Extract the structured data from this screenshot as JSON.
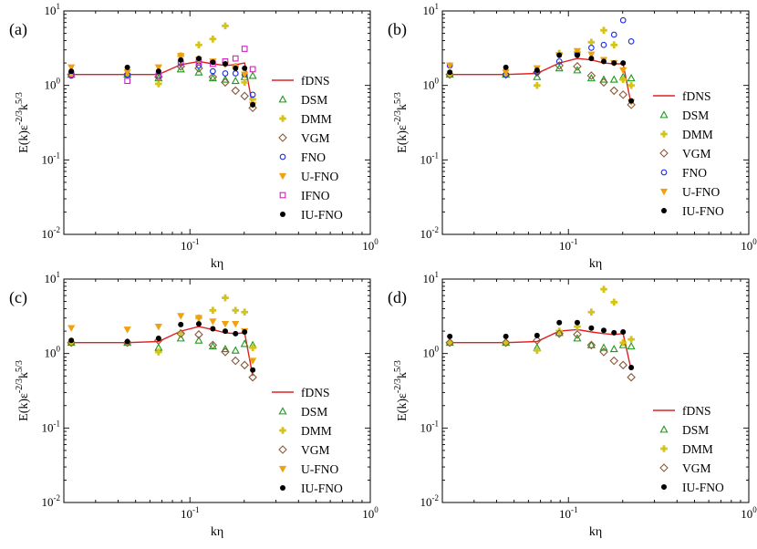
{
  "chart_data": [
    {
      "type": "line",
      "panel_label": "(a)",
      "xlabel": "kη",
      "ylabel": "E(k)ε^(-2/3)k^(5/3)",
      "xscale": "log",
      "yscale": "log",
      "xlim": [
        0.02,
        1.0
      ],
      "ylim": [
        0.01,
        10
      ],
      "x_ticks": [
        "10^-1",
        "10^0"
      ],
      "y_ticks": [
        "10^-2",
        "10^-1",
        "10^0",
        "10^1"
      ],
      "legend_position": "right",
      "series": [
        {
          "name": "fDNS",
          "color": "#e02020",
          "marker": "line",
          "x": [
            0.022,
            0.045,
            0.067,
            0.089,
            0.112,
            0.134,
            0.157,
            0.179,
            0.201,
            0.223
          ],
          "y": [
            1.4,
            1.4,
            1.4,
            1.9,
            2.1,
            1.95,
            1.85,
            1.9,
            2.0,
            0.52
          ]
        },
        {
          "name": "DSM",
          "color": "#1a9a1a",
          "marker": "triangle",
          "x": [
            0.022,
            0.045,
            0.067,
            0.089,
            0.112,
            0.134,
            0.157,
            0.179,
            0.201,
            0.223
          ],
          "y": [
            1.4,
            1.4,
            1.25,
            1.65,
            1.5,
            1.25,
            1.2,
            1.15,
            1.3,
            1.35
          ]
        },
        {
          "name": "DMM",
          "color": "#d4c41a",
          "marker": "cross",
          "x": [
            0.022,
            0.045,
            0.067,
            0.089,
            0.112,
            0.134,
            0.157,
            0.179,
            0.201,
            0.223
          ],
          "y": [
            1.4,
            1.4,
            1.05,
            2.5,
            3.5,
            4.2,
            6.3,
            1.8,
            1.1,
            0.65
          ]
        },
        {
          "name": "VGM",
          "color": "#8b5a3c",
          "marker": "diamond",
          "x": [
            0.022,
            0.045,
            0.067,
            0.089,
            0.112,
            0.134,
            0.157,
            0.179,
            0.201,
            0.223
          ],
          "y": [
            1.4,
            1.4,
            1.3,
            1.8,
            1.7,
            1.3,
            1.1,
            0.85,
            0.72,
            0.5
          ]
        },
        {
          "name": "FNO",
          "color": "#1a2ae0",
          "marker": "circle-open",
          "x": [
            0.022,
            0.045,
            0.067,
            0.089,
            0.112,
            0.134,
            0.157,
            0.179,
            0.201,
            0.223
          ],
          "y": [
            1.35,
            1.4,
            1.35,
            2.0,
            1.85,
            1.55,
            1.45,
            1.45,
            1.4,
            0.75
          ]
        },
        {
          "name": "U-FNO",
          "color": "#f0a010",
          "marker": "triangle-down",
          "x": [
            0.022,
            0.045,
            0.067,
            0.089,
            0.112,
            0.134,
            0.157,
            0.179,
            0.201,
            0.223
          ],
          "y": [
            1.75,
            1.5,
            1.75,
            2.5,
            2.2,
            2.1,
            1.9,
            1.7,
            1.4,
            0.55
          ]
        },
        {
          "name": "IFNO",
          "color": "#d020c0",
          "marker": "square-open",
          "x": [
            0.022,
            0.045,
            0.067,
            0.089,
            0.112,
            0.134,
            0.157,
            0.179,
            0.201,
            0.223
          ],
          "y": [
            1.4,
            1.15,
            1.35,
            2.0,
            2.05,
            1.95,
            2.1,
            2.3,
            3.1,
            1.65
          ]
        },
        {
          "name": "IU-FNO",
          "color": "#000000",
          "marker": "dot",
          "x": [
            0.022,
            0.045,
            0.067,
            0.089,
            0.112,
            0.134,
            0.157,
            0.179,
            0.201,
            0.223
          ],
          "y": [
            1.55,
            1.75,
            1.55,
            2.2,
            2.3,
            2.05,
            1.95,
            1.7,
            1.7,
            0.55
          ]
        }
      ]
    },
    {
      "type": "line",
      "panel_label": "(b)",
      "xlabel": "kη",
      "ylabel": "E(k)ε^(-2/3)k^(5/3)",
      "xscale": "log",
      "yscale": "log",
      "xlim": [
        0.02,
        1.0
      ],
      "ylim": [
        0.01,
        10
      ],
      "x_ticks": [
        "10^-1",
        "10^0"
      ],
      "y_ticks": [
        "10^-2",
        "10^-1",
        "10^0",
        "10^1"
      ],
      "legend_position": "right",
      "series": [
        {
          "name": "fDNS",
          "color": "#e02020",
          "marker": "line",
          "x": [
            0.022,
            0.045,
            0.067,
            0.089,
            0.112,
            0.134,
            0.157,
            0.179,
            0.201,
            0.223
          ],
          "y": [
            1.4,
            1.4,
            1.45,
            2.0,
            2.3,
            2.2,
            2.0,
            1.95,
            1.95,
            0.55
          ]
        },
        {
          "name": "DSM",
          "color": "#1a9a1a",
          "marker": "triangle",
          "x": [
            0.022,
            0.045,
            0.067,
            0.089,
            0.112,
            0.134,
            0.157,
            0.179,
            0.201,
            0.223
          ],
          "y": [
            1.4,
            1.4,
            1.3,
            1.7,
            1.6,
            1.25,
            1.2,
            1.2,
            1.3,
            1.25
          ]
        },
        {
          "name": "DMM",
          "color": "#d4c41a",
          "marker": "cross",
          "x": [
            0.022,
            0.045,
            0.067,
            0.089,
            0.112,
            0.134,
            0.157,
            0.179,
            0.201,
            0.223
          ],
          "y": [
            1.4,
            1.4,
            1.0,
            2.7,
            2.8,
            3.8,
            5.5,
            3.5,
            1.2,
            1.0
          ]
        },
        {
          "name": "VGM",
          "color": "#8b5a3c",
          "marker": "diamond",
          "x": [
            0.022,
            0.045,
            0.067,
            0.089,
            0.112,
            0.134,
            0.157,
            0.179,
            0.201,
            0.223
          ],
          "y": [
            1.4,
            1.4,
            1.5,
            1.85,
            1.8,
            1.35,
            1.1,
            0.85,
            0.75,
            0.55
          ]
        },
        {
          "name": "FNO",
          "color": "#1a2ae0",
          "marker": "circle-open",
          "x": [
            0.022,
            0.045,
            0.067,
            0.089,
            0.112,
            0.134,
            0.157,
            0.179,
            0.201,
            0.223
          ],
          "y": [
            1.85,
            1.4,
            1.5,
            2.1,
            2.6,
            3.2,
            3.5,
            4.8,
            7.5,
            3.9
          ]
        },
        {
          "name": "U-FNO",
          "color": "#f0a010",
          "marker": "triangle-down",
          "x": [
            0.022,
            0.045,
            0.067,
            0.089,
            0.112,
            0.134,
            0.157,
            0.179,
            0.201,
            0.223
          ],
          "y": [
            1.85,
            1.5,
            1.7,
            2.5,
            2.9,
            2.6,
            2.2,
            2.0,
            1.6,
            0.6
          ]
        },
        {
          "name": "IU-FNO",
          "color": "#000000",
          "marker": "dot",
          "x": [
            0.022,
            0.045,
            0.067,
            0.089,
            0.112,
            0.134,
            0.157,
            0.179,
            0.201,
            0.223
          ],
          "y": [
            1.5,
            1.75,
            1.6,
            2.55,
            2.55,
            2.3,
            2.1,
            2.0,
            2.0,
            0.62
          ]
        }
      ]
    },
    {
      "type": "line",
      "panel_label": "(c)",
      "xlabel": "kη",
      "ylabel": "E(k)ε^(-2/3)k^(5/3)",
      "xscale": "log",
      "yscale": "log",
      "xlim": [
        0.02,
        1.0
      ],
      "ylim": [
        0.01,
        10
      ],
      "x_ticks": [
        "10^-1",
        "10^0"
      ],
      "y_ticks": [
        "10^-2",
        "10^-1",
        "10^0",
        "10^1"
      ],
      "legend_position": "right",
      "series": [
        {
          "name": "fDNS",
          "color": "#e02020",
          "marker": "line",
          "x": [
            0.022,
            0.045,
            0.067,
            0.089,
            0.112,
            0.134,
            0.157,
            0.179,
            0.201,
            0.223
          ],
          "y": [
            1.4,
            1.4,
            1.45,
            2.0,
            2.3,
            2.1,
            1.9,
            1.85,
            1.9,
            0.5
          ]
        },
        {
          "name": "DSM",
          "color": "#1a9a1a",
          "marker": "triangle",
          "x": [
            0.022,
            0.045,
            0.067,
            0.089,
            0.112,
            0.134,
            0.157,
            0.179,
            0.201,
            0.223
          ],
          "y": [
            1.4,
            1.4,
            1.2,
            1.6,
            1.5,
            1.25,
            1.15,
            1.1,
            1.35,
            1.3
          ]
        },
        {
          "name": "DMM",
          "color": "#d4c41a",
          "marker": "cross",
          "x": [
            0.022,
            0.045,
            0.067,
            0.089,
            0.112,
            0.134,
            0.157,
            0.179,
            0.201,
            0.223
          ],
          "y": [
            1.4,
            1.4,
            1.05,
            1.9,
            3.0,
            3.8,
            5.6,
            3.8,
            3.6,
            1.2
          ]
        },
        {
          "name": "VGM",
          "color": "#8b5a3c",
          "marker": "diamond",
          "x": [
            0.022,
            0.045,
            0.067,
            0.089,
            0.112,
            0.134,
            0.157,
            0.179,
            0.201,
            0.223
          ],
          "y": [
            1.4,
            1.4,
            1.5,
            1.85,
            1.8,
            1.3,
            1.05,
            0.8,
            0.7,
            0.48
          ]
        },
        {
          "name": "U-FNO",
          "color": "#f0a010",
          "marker": "triangle-down",
          "x": [
            0.022,
            0.045,
            0.067,
            0.089,
            0.112,
            0.134,
            0.157,
            0.179,
            0.201,
            0.223
          ],
          "y": [
            2.2,
            2.1,
            2.3,
            3.2,
            3.0,
            2.7,
            2.5,
            2.5,
            2.0,
            0.8
          ]
        },
        {
          "name": "IU-FNO",
          "color": "#000000",
          "marker": "dot",
          "x": [
            0.022,
            0.045,
            0.067,
            0.089,
            0.112,
            0.134,
            0.157,
            0.179,
            0.201,
            0.223
          ],
          "y": [
            1.5,
            1.45,
            1.6,
            2.45,
            2.5,
            2.15,
            2.0,
            1.85,
            1.95,
            0.6
          ]
        }
      ]
    },
    {
      "type": "line",
      "panel_label": "(d)",
      "xlabel": "kη",
      "ylabel": "E(k)ε^(-2/3)k^(5/3)",
      "xscale": "log",
      "yscale": "log",
      "xlim": [
        0.02,
        1.0
      ],
      "ylim": [
        0.01,
        10
      ],
      "x_ticks": [
        "10^-1",
        "10^0"
      ],
      "y_ticks": [
        "10^-2",
        "10^-1",
        "10^0",
        "10^1"
      ],
      "legend_position": "right",
      "series": [
        {
          "name": "fDNS",
          "color": "#e02020",
          "marker": "line",
          "x": [
            0.022,
            0.045,
            0.067,
            0.089,
            0.112,
            0.134,
            0.157,
            0.179,
            0.201,
            0.223
          ],
          "y": [
            1.4,
            1.4,
            1.45,
            2.0,
            2.1,
            1.95,
            1.85,
            1.8,
            1.85,
            0.6
          ]
        },
        {
          "name": "DSM",
          "color": "#1a9a1a",
          "marker": "triangle",
          "x": [
            0.022,
            0.045,
            0.067,
            0.089,
            0.112,
            0.134,
            0.157,
            0.179,
            0.201,
            0.223
          ],
          "y": [
            1.4,
            1.4,
            1.2,
            1.9,
            1.6,
            1.3,
            1.2,
            1.15,
            1.3,
            1.25
          ]
        },
        {
          "name": "DMM",
          "color": "#d4c41a",
          "marker": "cross",
          "x": [
            0.022,
            0.045,
            0.067,
            0.089,
            0.112,
            0.134,
            0.157,
            0.179,
            0.201,
            0.223
          ],
          "y": [
            1.4,
            1.4,
            1.1,
            2.0,
            2.3,
            3.6,
            7.3,
            4.9,
            1.4,
            1.55
          ]
        },
        {
          "name": "VGM",
          "color": "#8b5a3c",
          "marker": "diamond",
          "x": [
            0.022,
            0.045,
            0.067,
            0.089,
            0.112,
            0.134,
            0.157,
            0.179,
            0.201,
            0.223
          ],
          "y": [
            1.4,
            1.4,
            1.5,
            1.85,
            1.8,
            1.3,
            1.05,
            0.8,
            0.7,
            0.48
          ]
        },
        {
          "name": "IU-FNO",
          "color": "#000000",
          "marker": "dot",
          "x": [
            0.022,
            0.045,
            0.067,
            0.089,
            0.112,
            0.134,
            0.157,
            0.179,
            0.201,
            0.223
          ],
          "y": [
            1.7,
            1.7,
            1.75,
            2.6,
            2.6,
            2.2,
            2.05,
            1.9,
            1.95,
            0.65
          ]
        }
      ]
    }
  ]
}
